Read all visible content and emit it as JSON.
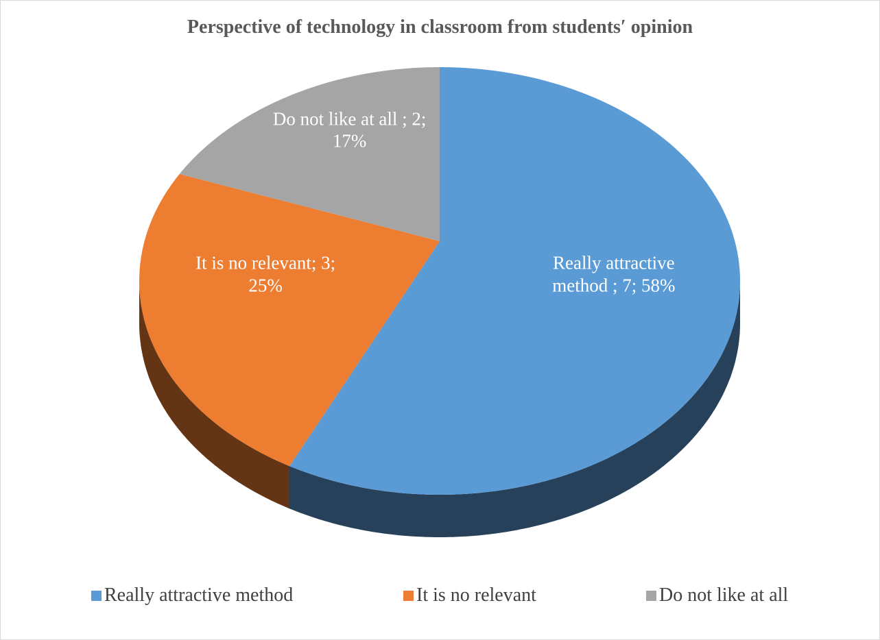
{
  "chart_data": {
    "type": "pie",
    "title": "Perspective of technology in classroom from students′ opinion",
    "categories": [
      "Really attractive method",
      "It is no relevant",
      "Do not like at all"
    ],
    "values": [
      7,
      3,
      2
    ],
    "value_labels": [
      "Really attractive method ; 7; 58%",
      "It is no relevant; 3; 25%",
      "Do not like at all ; 2; 17%"
    ],
    "colors": [
      "#5b9bd5",
      "#ed7d31",
      "#a5a5a5"
    ],
    "legend": "bottom"
  }
}
